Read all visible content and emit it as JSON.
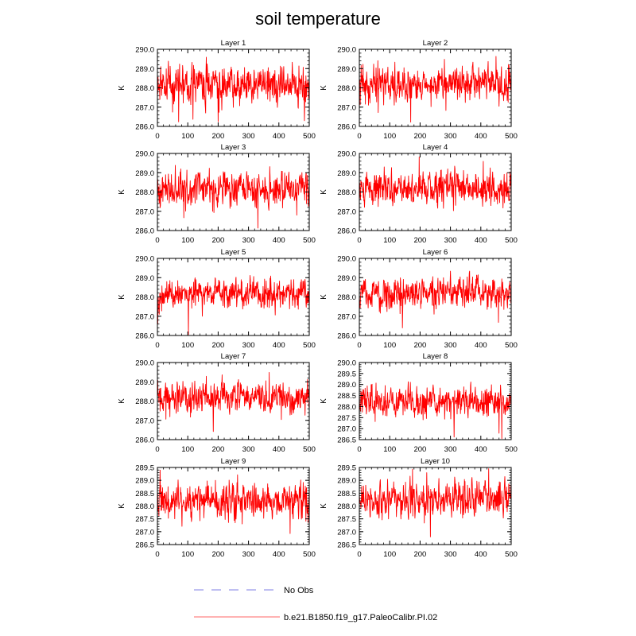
{
  "chart_data": {
    "type": "line",
    "title": "soil temperature",
    "colors": {
      "model_line": "#ff0000",
      "obs_line": "#aaaaee",
      "legend_model": "#ff9999"
    },
    "legend": [
      {
        "name": "No Obs",
        "style": "dashed"
      },
      {
        "name": "b.e21.B1850.f19_g17.PaleoCalibr.PI.02",
        "style": "solid"
      }
    ],
    "xlim": [
      0,
      500
    ],
    "xticks": [
      0,
      100,
      200,
      300,
      400,
      500
    ],
    "panels": [
      {
        "title": "Layer 1",
        "ylabel": "K",
        "ylim": [
          286.0,
          290.0
        ],
        "yticks": [
          "286.0",
          "287.0",
          "288.0",
          "289.0",
          "290.0"
        ],
        "mean": 288.2,
        "amp": 0.55,
        "seed": 11
      },
      {
        "title": "Layer 2",
        "ylabel": "K",
        "ylim": [
          286.0,
          290.0
        ],
        "yticks": [
          "286.0",
          "287.0",
          "288.0",
          "289.0",
          "290.0"
        ],
        "mean": 288.2,
        "amp": 0.53,
        "seed": 12
      },
      {
        "title": "Layer 3",
        "ylabel": "K",
        "ylim": [
          286.0,
          290.0
        ],
        "yticks": [
          "286.0",
          "287.0",
          "288.0",
          "289.0",
          "290.0"
        ],
        "mean": 288.2,
        "amp": 0.52,
        "seed": 13
      },
      {
        "title": "Layer 4",
        "ylabel": "K",
        "ylim": [
          286.0,
          290.0
        ],
        "yticks": [
          "286.0",
          "287.0",
          "288.0",
          "289.0",
          "290.0"
        ],
        "mean": 288.2,
        "amp": 0.5,
        "seed": 14
      },
      {
        "title": "Layer 5",
        "ylabel": "K",
        "ylim": [
          286.0,
          290.0
        ],
        "yticks": [
          "286.0",
          "287.0",
          "288.0",
          "289.0",
          "290.0"
        ],
        "mean": 288.2,
        "amp": 0.48,
        "seed": 15
      },
      {
        "title": "Layer 6",
        "ylabel": "K",
        "ylim": [
          286.0,
          290.0
        ],
        "yticks": [
          "286.0",
          "287.0",
          "288.0",
          "289.0",
          "290.0"
        ],
        "mean": 288.2,
        "amp": 0.46,
        "seed": 16
      },
      {
        "title": "Layer 7",
        "ylabel": "K",
        "ylim": [
          286.0,
          290.0
        ],
        "yticks": [
          "286.0",
          "287.0",
          "288.0",
          "289.0",
          "290.0"
        ],
        "mean": 288.2,
        "amp": 0.44,
        "seed": 17
      },
      {
        "title": "Layer 8",
        "ylabel": "K",
        "ylim": [
          286.5,
          290.0
        ],
        "yticks": [
          "286.5",
          "287.0",
          "287.5",
          "288.0",
          "288.5",
          "289.0",
          "289.5",
          "290.0"
        ],
        "mean": 288.2,
        "amp": 0.42,
        "seed": 18
      },
      {
        "title": "Layer 9",
        "ylabel": "K",
        "ylim": [
          286.5,
          289.5
        ],
        "yticks": [
          "286.5",
          "287.0",
          "287.5",
          "288.0",
          "288.5",
          "289.0",
          "289.5"
        ],
        "mean": 288.2,
        "amp": 0.4,
        "seed": 19
      },
      {
        "title": "Layer 10",
        "ylabel": "K",
        "ylim": [
          286.5,
          289.5
        ],
        "yticks": [
          "286.5",
          "287.0",
          "287.5",
          "288.0",
          "288.5",
          "289.0",
          "289.5"
        ],
        "mean": 288.25,
        "amp": 0.38,
        "seed": 20
      }
    ]
  }
}
